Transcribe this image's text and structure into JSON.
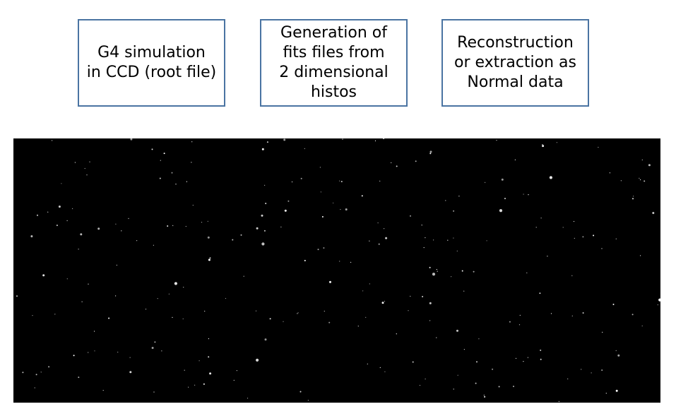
{
  "flow_steps": [
    {
      "label": "G4 simulation\nin CCD (root file)"
    },
    {
      "label": "Generation of\nfits files from\n2 dimensional\nhistos"
    },
    {
      "label": "Reconstruction\nor extraction as\nNormal data"
    }
  ],
  "colors": {
    "box_border": "#4a74a2",
    "panel_background": "#000000",
    "star": "#ffffff"
  }
}
